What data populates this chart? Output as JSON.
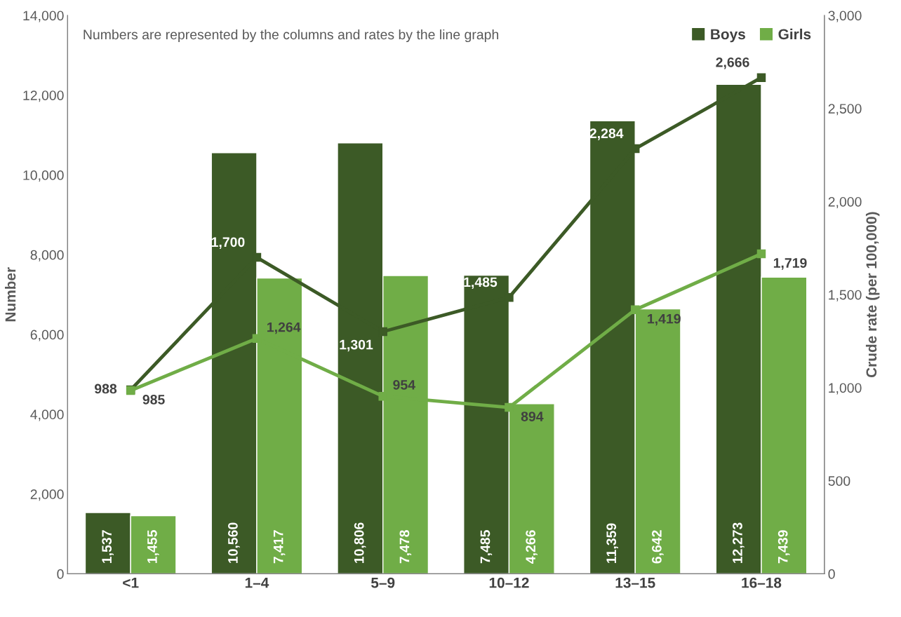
{
  "chart_data": {
    "type": "bar",
    "categories": [
      "<1",
      "1–4",
      "5–9",
      "10–12",
      "13–15",
      "16–18"
    ],
    "series": [
      {
        "name": "Boys",
        "color": "#3c5a26",
        "values": [
          1537,
          10560,
          10806,
          7485,
          11359,
          12273
        ],
        "value_labels": [
          "1,537",
          "10,560",
          "10,806",
          "7,485",
          "11,359",
          "12,273"
        ]
      },
      {
        "name": "Girls",
        "color": "#70ad47",
        "values": [
          1455,
          7417,
          7478,
          4266,
          6642,
          7439
        ],
        "value_labels": [
          "1,455",
          "7,417",
          "7,478",
          "4,266",
          "6,642",
          "7,439"
        ]
      },
      {
        "type": "line",
        "axis": "y2",
        "color": "#3c5a26",
        "marker": "square",
        "values": [
          988,
          1700,
          1301,
          1485,
          2284,
          2666
        ],
        "value_labels": [
          "988",
          "1,700",
          "1,301",
          "1,485",
          "2,284",
          "2,666"
        ]
      },
      {
        "type": "line",
        "axis": "y2",
        "color": "#70ad47",
        "marker": "square",
        "values": [
          985,
          1264,
          954,
          894,
          1419,
          1719
        ],
        "value_labels": [
          "985",
          "1,264",
          "954",
          "894",
          "1,419",
          "1,719"
        ]
      }
    ],
    "ylabel": "Number",
    "y2label": "Crude rate (per 100,000)",
    "ylim": [
      0,
      14000
    ],
    "yticks": [
      0,
      {
        "value": 2000,
        "label": "2,000"
      },
      {
        "value": 4000,
        "label": "4,000"
      },
      {
        "value": 6000,
        "label": "6,000"
      },
      {
        "value": 8000,
        "label": "8,000"
      },
      {
        "value": 10000,
        "label": "10,000"
      },
      {
        "value": 12000,
        "label": "12,000"
      },
      {
        "value": 14000,
        "label": "14,000"
      }
    ],
    "y2lim": [
      0,
      3000
    ],
    "y2ticks": [
      0,
      500,
      {
        "value": 1000,
        "label": "1,000"
      },
      {
        "value": 1500,
        "label": "1,500"
      },
      {
        "value": 2000,
        "label": "2,000"
      },
      {
        "value": 2500,
        "label": "2,500"
      },
      {
        "value": 3000,
        "label": "3,000"
      }
    ],
    "annotations": [
      "Numbers are represented by the columns and rates by the line graph"
    ],
    "legend": "top right",
    "grid": false,
    "line_style": "solid"
  }
}
